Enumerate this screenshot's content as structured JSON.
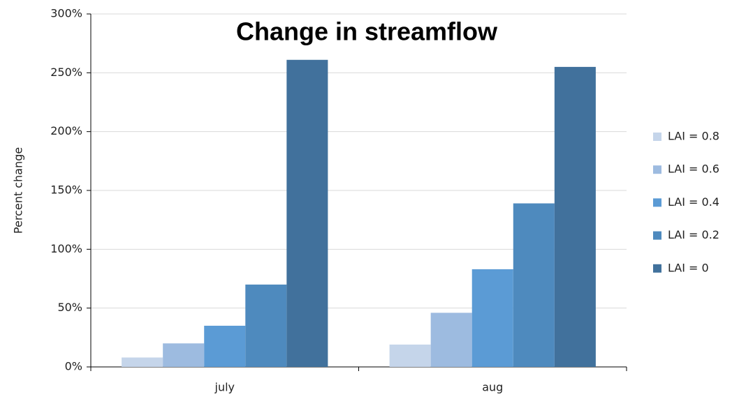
{
  "chart_data": {
    "type": "bar",
    "title": "Change in streamflow",
    "y_label": "Percent change",
    "categories": [
      "july",
      "aug"
    ],
    "series": [
      {
        "name": "LAI = 0.8",
        "color": "#c5d5ea",
        "values": [
          8,
          19
        ]
      },
      {
        "name": "LAI = 0.6",
        "color": "#9dbbe0",
        "values": [
          20,
          46
        ]
      },
      {
        "name": "LAI = 0.4",
        "color": "#5b9bd5",
        "values": [
          35,
          83
        ]
      },
      {
        "name": "LAI = 0.2",
        "color": "#4e8abe",
        "values": [
          70,
          139
        ]
      },
      {
        "name": "LAI = 0",
        "color": "#41719c",
        "values": [
          261,
          255
        ]
      }
    ],
    "ylim": [
      0,
      300
    ],
    "yticks": [
      {
        "value": 0,
        "label": "0%"
      },
      {
        "value": 50,
        "label": "50%"
      },
      {
        "value": 100,
        "label": "100%"
      },
      {
        "value": 150,
        "label": "150%"
      },
      {
        "value": 200,
        "label": "200%"
      },
      {
        "value": 250,
        "label": "250%"
      },
      {
        "value": 300,
        "label": "300%"
      }
    ],
    "grid": true,
    "legend": "right"
  }
}
